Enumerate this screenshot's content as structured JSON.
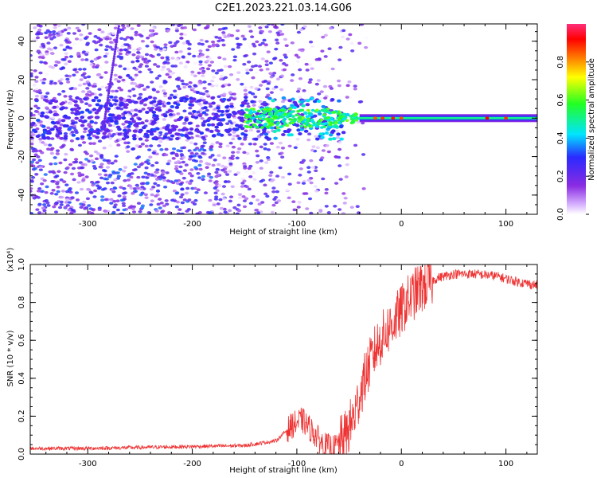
{
  "title": "C2E1.2023.221.03.14.G06",
  "colors": {
    "snr_line": "#ee3333",
    "spectrogram_cmap": [
      "#ffffff",
      "#d8b4ff",
      "#8a2be2",
      "#2a2aff",
      "#00e5ff",
      "#22ff22",
      "#ffff00",
      "#ff7f00",
      "#ff0000",
      "#ff2e7a"
    ]
  },
  "chart_data": [
    {
      "type": "heatmap",
      "title": "",
      "xlabel": "Height of straight line (km)",
      "ylabel": "Frequency (Hz)",
      "xlim": [
        -355,
        130
      ],
      "ylim": [
        -50,
        49
      ],
      "xticks": [
        "-300",
        "-200",
        "-100",
        "0",
        "100"
      ],
      "yticks": [
        "40",
        "20",
        "0",
        "-20",
        "-40"
      ],
      "colorbar": {
        "label": "Normalized spectral amplitude",
        "range": [
          0,
          1
        ],
        "ticks": [
          "0.0",
          "0.2",
          "0.4",
          "0.6",
          "0.8"
        ]
      },
      "features": [
        {
          "name": "dominant-tone",
          "x_range": [
            -150,
            130
          ],
          "frequency_hz": 0,
          "amplitude": [
            0.4,
            0.9
          ]
        },
        {
          "name": "broadband-noise",
          "x_range": [
            -355,
            -60
          ],
          "frequency_range_hz": [
            -50,
            49
          ],
          "amplitude": [
            0.0,
            0.3
          ]
        }
      ]
    },
    {
      "type": "line",
      "title": "",
      "xlabel": "Height of straight line (km)",
      "ylabel": "SNR (10 * v/v)",
      "y_scale_note": "(x10⁴)",
      "xlim": [
        -355,
        130
      ],
      "ylim": [
        0,
        1.0
      ],
      "xticks": [
        "-300",
        "-200",
        "-100",
        "0",
        "100"
      ],
      "yticks": [
        "0.0",
        "0.2",
        "0.4",
        "0.6",
        "0.8",
        "1.0"
      ],
      "series": [
        {
          "x": [
            -355,
            -300,
            -250,
            -200,
            -150,
            -120,
            -105,
            -95,
            -85,
            -75,
            -65,
            -55,
            -45,
            -38,
            -32,
            -25,
            -18,
            -10,
            -2,
            5,
            15,
            25,
            35,
            50,
            70,
            90,
            110,
            130
          ],
          "y": [
            0.03,
            0.03,
            0.035,
            0.04,
            0.045,
            0.07,
            0.15,
            0.18,
            0.12,
            0.05,
            0.03,
            0.08,
            0.2,
            0.35,
            0.45,
            0.55,
            0.62,
            0.68,
            0.74,
            0.8,
            0.86,
            0.9,
            0.93,
            0.95,
            0.95,
            0.94,
            0.91,
            0.89
          ]
        }
      ]
    }
  ]
}
